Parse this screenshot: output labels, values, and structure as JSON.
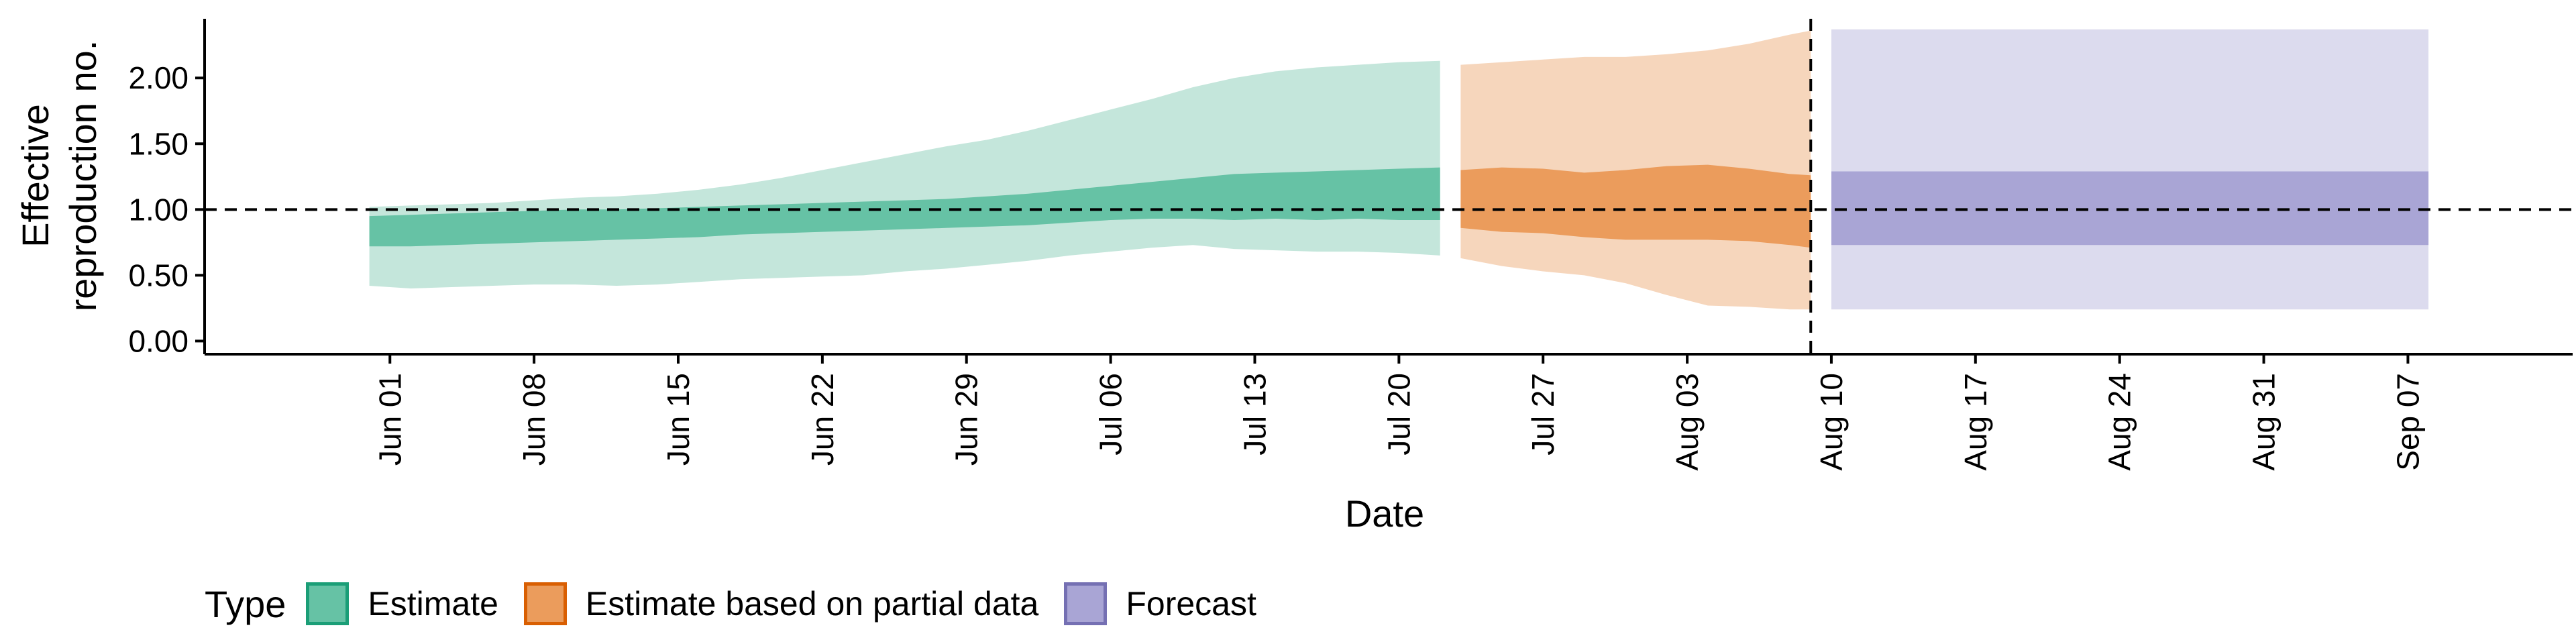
{
  "chart_data": {
    "type": "area",
    "xlabel": "Date",
    "ylabel": [
      "Effective",
      "reproduction no."
    ],
    "ylim": [
      -0.1,
      2.45
    ],
    "yticks": [
      "0.00",
      "0.50",
      "1.00",
      "1.50",
      "2.00"
    ],
    "xlim": [
      "2020-05-23",
      "2020-09-15"
    ],
    "xticks": [
      {
        "date": "2020-06-01",
        "label": "Jun 01"
      },
      {
        "date": "2020-06-08",
        "label": "Jun 08"
      },
      {
        "date": "2020-06-15",
        "label": "Jun 15"
      },
      {
        "date": "2020-06-22",
        "label": "Jun 22"
      },
      {
        "date": "2020-06-29",
        "label": "Jun 29"
      },
      {
        "date": "2020-07-06",
        "label": "Jul 06"
      },
      {
        "date": "2020-07-13",
        "label": "Jul 13"
      },
      {
        "date": "2020-07-20",
        "label": "Jul 20"
      },
      {
        "date": "2020-07-27",
        "label": "Jul 27"
      },
      {
        "date": "2020-08-03",
        "label": "Aug 03"
      },
      {
        "date": "2020-08-10",
        "label": "Aug 10"
      },
      {
        "date": "2020-08-17",
        "label": "Aug 17"
      },
      {
        "date": "2020-08-24",
        "label": "Aug 24"
      },
      {
        "date": "2020-08-31",
        "label": "Aug 31"
      },
      {
        "date": "2020-09-07",
        "label": "Sep 07"
      }
    ],
    "reference_line_y": 1.0,
    "vline_date": "2020-08-09",
    "legend_title": "Type",
    "legend_position": "bottom",
    "series": [
      {
        "name": "Estimate",
        "fill_color": "#66C2A5",
        "outer_color": "#C4E6DB",
        "border_color": "#1B9E77",
        "dates": [
          "2020-05-31",
          "2020-06-02",
          "2020-06-04",
          "2020-06-06",
          "2020-06-08",
          "2020-06-10",
          "2020-06-12",
          "2020-06-14",
          "2020-06-16",
          "2020-06-18",
          "2020-06-20",
          "2020-06-22",
          "2020-06-24",
          "2020-06-26",
          "2020-06-28",
          "2020-06-30",
          "2020-07-02",
          "2020-07-04",
          "2020-07-06",
          "2020-07-08",
          "2020-07-10",
          "2020-07-12",
          "2020-07-14",
          "2020-07-16",
          "2020-07-18",
          "2020-07-20",
          "2020-07-22"
        ],
        "outer_lower": [
          0.42,
          0.4,
          0.41,
          0.42,
          0.43,
          0.43,
          0.42,
          0.43,
          0.45,
          0.47,
          0.48,
          0.49,
          0.5,
          0.53,
          0.55,
          0.58,
          0.61,
          0.65,
          0.68,
          0.71,
          0.73,
          0.7,
          0.69,
          0.68,
          0.68,
          0.67,
          0.65
        ],
        "inner_lower": [
          0.72,
          0.72,
          0.73,
          0.74,
          0.75,
          0.76,
          0.77,
          0.78,
          0.79,
          0.81,
          0.82,
          0.83,
          0.84,
          0.85,
          0.86,
          0.87,
          0.88,
          0.9,
          0.92,
          0.93,
          0.93,
          0.92,
          0.93,
          0.92,
          0.93,
          0.92,
          0.92
        ],
        "inner_upper": [
          0.95,
          0.96,
          0.97,
          0.98,
          0.99,
          1.0,
          1.0,
          1.01,
          1.02,
          1.03,
          1.04,
          1.05,
          1.06,
          1.07,
          1.08,
          1.1,
          1.12,
          1.15,
          1.18,
          1.21,
          1.24,
          1.27,
          1.28,
          1.29,
          1.3,
          1.31,
          1.32
        ],
        "outer_upper": [
          1.02,
          1.03,
          1.04,
          1.05,
          1.07,
          1.09,
          1.1,
          1.12,
          1.15,
          1.19,
          1.24,
          1.3,
          1.36,
          1.42,
          1.48,
          1.53,
          1.6,
          1.68,
          1.76,
          1.84,
          1.93,
          2.0,
          2.05,
          2.08,
          2.1,
          2.12,
          2.13
        ]
      },
      {
        "name": "Estimate based on partial data",
        "fill_color": "#EB9C5C",
        "outer_color": "#F6D6BC",
        "border_color": "#D95F02",
        "dates": [
          "2020-07-23",
          "2020-07-25",
          "2020-07-27",
          "2020-07-29",
          "2020-07-31",
          "2020-08-02",
          "2020-08-04",
          "2020-08-06",
          "2020-08-08",
          "2020-08-09"
        ],
        "outer_lower": [
          0.63,
          0.57,
          0.53,
          0.5,
          0.44,
          0.35,
          0.27,
          0.26,
          0.24,
          0.24
        ],
        "inner_lower": [
          0.86,
          0.83,
          0.82,
          0.79,
          0.77,
          0.77,
          0.77,
          0.76,
          0.73,
          0.71
        ],
        "inner_upper": [
          1.3,
          1.32,
          1.31,
          1.28,
          1.3,
          1.33,
          1.34,
          1.31,
          1.27,
          1.26
        ],
        "outer_upper": [
          2.1,
          2.12,
          2.14,
          2.16,
          2.16,
          2.18,
          2.21,
          2.26,
          2.33,
          2.36
        ]
      },
      {
        "name": "Forecast",
        "fill_color": "#A9A5D5",
        "outer_color": "#DCDBEE",
        "border_color": "#7570B3",
        "dates": [
          "2020-08-10",
          "2020-09-08"
        ],
        "outer_lower": [
          0.24,
          0.24
        ],
        "inner_lower": [
          0.73,
          0.73
        ],
        "inner_upper": [
          1.29,
          1.29
        ],
        "outer_upper": [
          2.37,
          2.37
        ]
      }
    ]
  }
}
